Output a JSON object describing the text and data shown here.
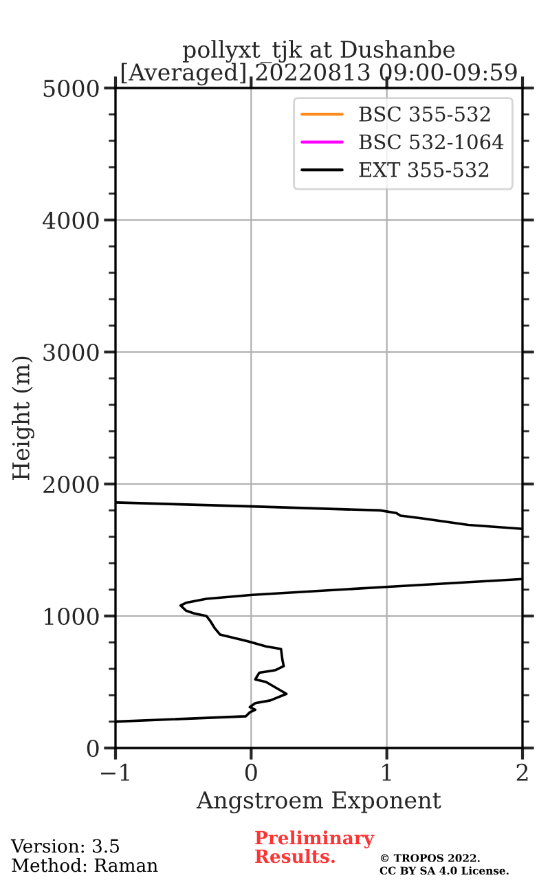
{
  "chart_data": {
    "type": "line",
    "title": "pollyxt_tjk at Dushanbe\n[Averaged] 20220813 09:00-09:59",
    "xlabel": "Angstroem Exponent",
    "ylabel": "Height (m)",
    "xlim": [
      -1,
      2
    ],
    "xticks": [
      {
        "value": -1,
        "label": "−1"
      },
      0,
      1,
      2
    ],
    "ylim": [
      0,
      5000
    ],
    "yticks": [
      0,
      1000,
      2000,
      3000,
      4000,
      5000,
      {
        "value": 200,
        "label": null
      },
      {
        "value": 400,
        "label": null
      },
      {
        "value": 600,
        "label": null
      },
      {
        "value": 800,
        "label": null
      },
      {
        "value": 1200,
        "label": null
      },
      {
        "value": 1400,
        "label": null
      },
      {
        "value": 1600,
        "label": null
      },
      {
        "value": 1800,
        "label": null
      },
      {
        "value": 2200,
        "label": null
      },
      {
        "value": 2400,
        "label": null
      },
      {
        "value": 2600,
        "label": null
      },
      {
        "value": 2800,
        "label": null
      },
      {
        "value": 3200,
        "label": null
      },
      {
        "value": 3400,
        "label": null
      },
      {
        "value": 3600,
        "label": null
      },
      {
        "value": 3800,
        "label": null
      },
      {
        "value": 4200,
        "label": null
      },
      {
        "value": 4400,
        "label": null
      },
      {
        "value": 4600,
        "label": null
      },
      {
        "value": 4800,
        "label": null
      }
    ],
    "grid": true,
    "legend": "top right",
    "series": [
      {
        "name": "BSC 355-532",
        "color": "#ff8c1a"
      },
      {
        "name": "BSC 532-1064",
        "color": "#ff00ff"
      },
      {
        "name": "EXT 355-532",
        "color": "#000000",
        "x": [
          -1,
          -0.04,
          -0.01,
          0.03,
          -0.01,
          0.03,
          0.14,
          0.26,
          0.21,
          0.11,
          0.03,
          0.06,
          0.18,
          0.24,
          0.23,
          0.22,
          0.11,
          -0.03,
          -0.23,
          -0.27,
          -0.3,
          -0.33,
          -0.42,
          -0.48,
          -0.52,
          -0.48,
          -0.33,
          0.01,
          0.99,
          2,
          null,
          2,
          1.6,
          1.26,
          1.1,
          1.07,
          0.95,
          0.01,
          -1
        ],
        "values": [
          200,
          240,
          270,
          290,
          310,
          340,
          360,
          410,
          440,
          500,
          520,
          570,
          590,
          620,
          670,
          750,
          770,
          810,
          860,
          910,
          960,
          1000,
          1020,
          1040,
          1080,
          1100,
          1130,
          1160,
          1220,
          1280,
          null,
          1660,
          1690,
          1740,
          1760,
          1780,
          1800,
          1830,
          1860
        ]
      }
    ],
    "annotations": [
      "Version: 3.5",
      "Method: Raman",
      "Preliminary\nResults.",
      "© TROPOS 2022.\nCC BY SA 4.0 License."
    ]
  }
}
